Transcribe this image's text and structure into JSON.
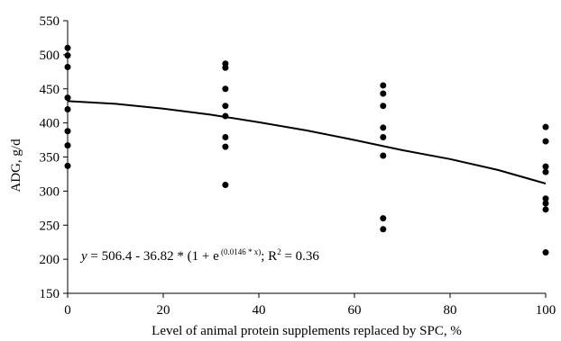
{
  "chart_data": {
    "type": "scatter",
    "title": "",
    "xlabel": "Level of animal protein supplements replaced by SPC, %",
    "ylabel": "ADG, g/d",
    "xlim": [
      0,
      100
    ],
    "ylim": [
      150,
      550
    ],
    "xticks": [
      0,
      20,
      40,
      60,
      80,
      100
    ],
    "yticks": [
      150,
      200,
      250,
      300,
      350,
      400,
      450,
      500,
      550
    ],
    "grid": false,
    "legend": "none",
    "marker_color": "#000000",
    "line_color": "#000000",
    "series": [
      {
        "type": "scatter",
        "points": [
          [
            0,
            510
          ],
          [
            0,
            499
          ],
          [
            0,
            482
          ],
          [
            0,
            437
          ],
          [
            0,
            420
          ],
          [
            0,
            388
          ],
          [
            0,
            367
          ],
          [
            0,
            337
          ],
          [
            33,
            487
          ],
          [
            33,
            481
          ],
          [
            33,
            450
          ],
          [
            33,
            425
          ],
          [
            33,
            410
          ],
          [
            33,
            379
          ],
          [
            33,
            365
          ],
          [
            33,
            309
          ],
          [
            66,
            455
          ],
          [
            66,
            443
          ],
          [
            66,
            425
          ],
          [
            66,
            393
          ],
          [
            66,
            379
          ],
          [
            66,
            352
          ],
          [
            66,
            260
          ],
          [
            66,
            244
          ],
          [
            100,
            394
          ],
          [
            100,
            373
          ],
          [
            100,
            336
          ],
          [
            100,
            328
          ],
          [
            100,
            289
          ],
          [
            100,
            282
          ],
          [
            100,
            273
          ],
          [
            100,
            210
          ]
        ]
      },
      {
        "type": "line",
        "points": [
          [
            0,
            432
          ],
          [
            10,
            428
          ],
          [
            20,
            421
          ],
          [
            30,
            412
          ],
          [
            40,
            401
          ],
          [
            50,
            389
          ],
          [
            60,
            375
          ],
          [
            70,
            360
          ],
          [
            80,
            347
          ],
          [
            90,
            331
          ],
          [
            100,
            311
          ]
        ]
      }
    ],
    "annotation": {
      "y_var": "y",
      "eq_part1": " = 506.4 - 36.82 * (1 + e",
      "exp1": " (0.0146 * x)",
      "eq_part2": "; R",
      "exp2": "2",
      "eq_part3": " = 0.36"
    }
  }
}
